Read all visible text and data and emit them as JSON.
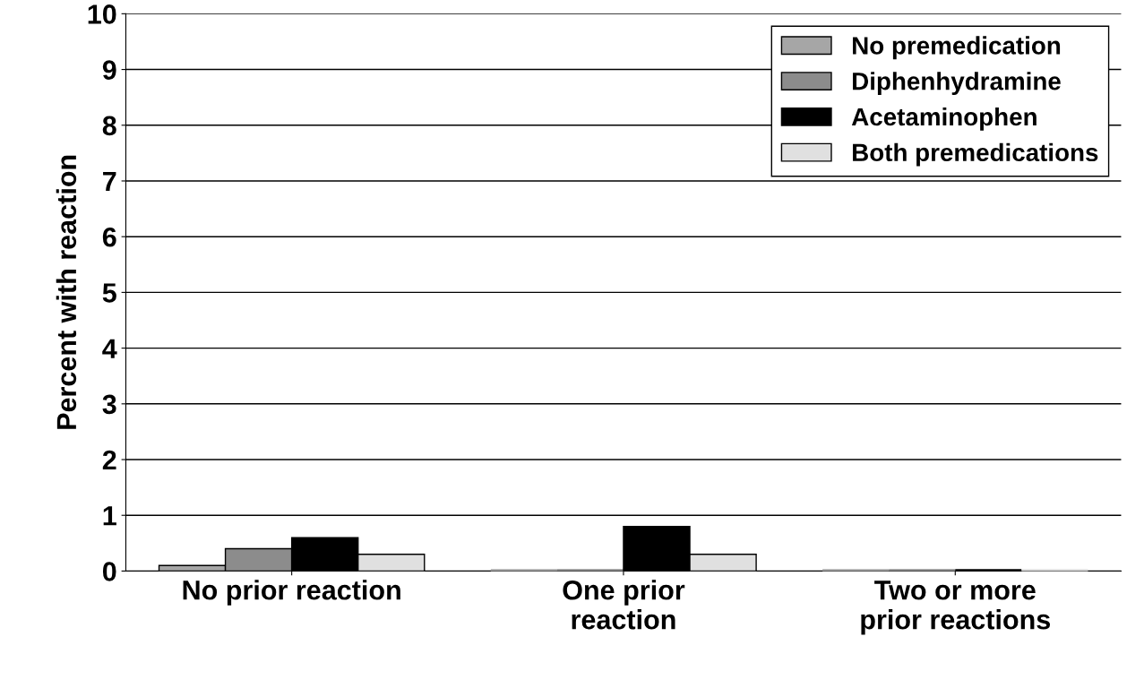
{
  "chart_data": {
    "type": "bar",
    "ylabel": "Percent with reaction",
    "categories": [
      "No prior reaction",
      "One prior\nreaction",
      "Two or more\nprior reactions"
    ],
    "series": [
      {
        "name": "No premedication",
        "color": "#a6a6a6",
        "values": [
          0.1,
          0,
          0
        ]
      },
      {
        "name": "Diphenhydramine",
        "color": "#8c8c8c",
        "values": [
          0.4,
          0,
          0
        ]
      },
      {
        "name": "Acetaminophen",
        "color": "#000000",
        "values": [
          0.6,
          0.8,
          0
        ]
      },
      {
        "name": "Both premedications",
        "color": "#e0e0e0",
        "values": [
          0.3,
          0.3,
          0
        ]
      }
    ],
    "ylim": [
      0,
      10
    ],
    "yticks": [
      0,
      1,
      2,
      3,
      4,
      5,
      6,
      7,
      8,
      9,
      10
    ],
    "grid": "y",
    "legend": "top right"
  }
}
